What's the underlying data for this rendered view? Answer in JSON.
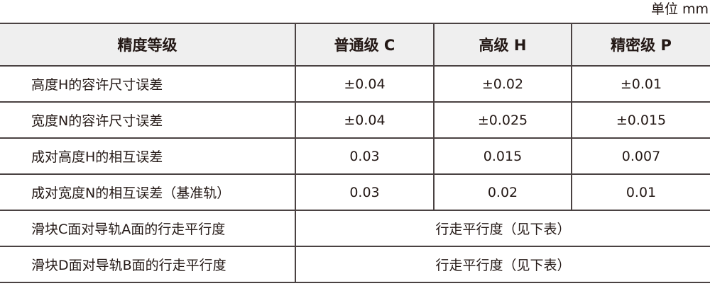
{
  "unit_label": "单位 mm",
  "table": {
    "headers": [
      "精度等级",
      "普通级 C",
      "高级 H",
      "精密级 P"
    ],
    "rows": [
      {
        "label": "高度H的容许尺寸误差",
        "values": [
          "±0.04",
          "±0.02",
          "±0.01"
        ]
      },
      {
        "label": "宽度N的容许尺寸误差",
        "values": [
          "±0.04",
          "±0.025",
          "±0.015"
        ]
      },
      {
        "label": "成对高度H的相互误差",
        "values": [
          "0.03",
          "0.015",
          "0.007"
        ]
      },
      {
        "label": "成对宽度N的相互误差（基准轨）",
        "values": [
          "0.03",
          "0.02",
          "0.01"
        ]
      }
    ],
    "merged_rows": [
      {
        "label": "滑块C面对导轨A面的行走平行度",
        "value": "行走平行度（见下表）"
      },
      {
        "label": "滑块D面对导轨B面的行走平行度",
        "value": "行走平行度（见下表）"
      }
    ]
  }
}
